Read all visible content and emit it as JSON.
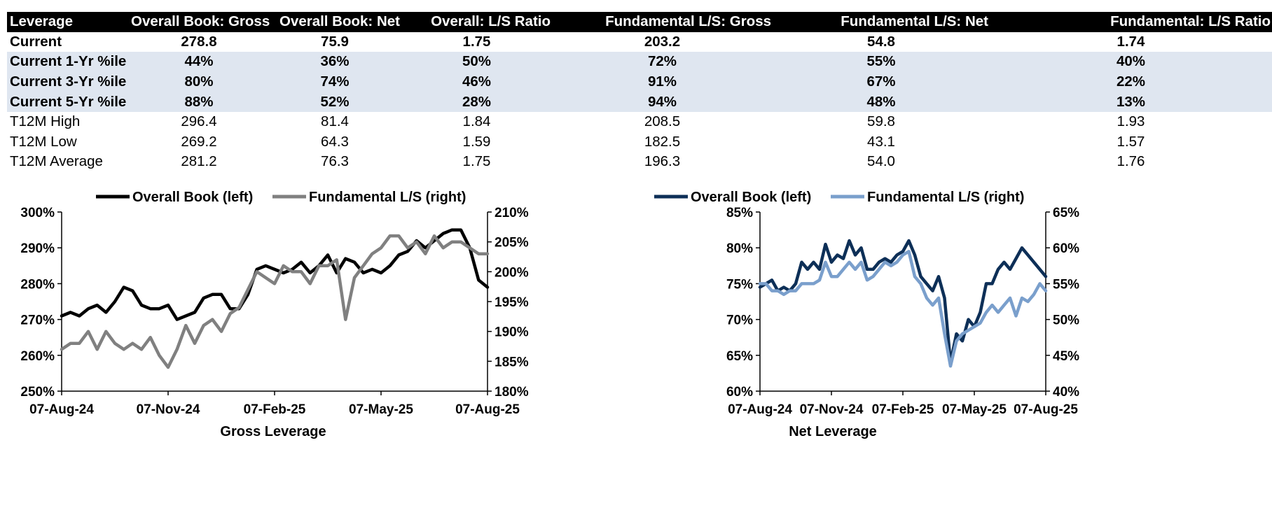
{
  "table": {
    "headers": [
      "Leverage",
      "Overall Book: Gross",
      "Overall Book: Net",
      "Overall: L/S Ratio",
      "Fundamental L/S: Gross",
      "Fundamental L/S: Net",
      "Fundamental: L/S Ratio"
    ],
    "rows": [
      {
        "label": "Current",
        "values": [
          "278.8",
          "75.9",
          "1.75",
          "203.2",
          "54.8",
          "1.74"
        ]
      },
      {
        "label": "Current 1-Yr %ile",
        "values": [
          "44%",
          "36%",
          "50%",
          "72%",
          "55%",
          "40%"
        ]
      },
      {
        "label": "Current 3-Yr %ile",
        "values": [
          "80%",
          "74%",
          "46%",
          "91%",
          "67%",
          "22%"
        ]
      },
      {
        "label": "Current 5-Yr %ile",
        "values": [
          "88%",
          "52%",
          "28%",
          "94%",
          "48%",
          "13%"
        ]
      },
      {
        "label": "T12M High",
        "values": [
          "296.4",
          "81.4",
          "1.84",
          "208.5",
          "59.8",
          "1.93"
        ]
      },
      {
        "label": "T12M Low",
        "values": [
          "269.2",
          "64.3",
          "1.59",
          "182.5",
          "43.1",
          "1.57"
        ]
      },
      {
        "label": "T12M Average",
        "values": [
          "281.2",
          "76.3",
          "1.75",
          "196.3",
          "54.0",
          "1.76"
        ]
      }
    ]
  },
  "chart_data": [
    {
      "type": "line",
      "title": "",
      "xlabel": "Gross Leverage",
      "x_tick_labels": [
        "07-Aug-24",
        "07-Nov-24",
        "07-Feb-25",
        "07-May-25",
        "07-Aug-25"
      ],
      "x_range": [
        0,
        12
      ],
      "ylim_left": [
        250,
        300
      ],
      "ylim_right": [
        180,
        210
      ],
      "y_left_ticks": [
        "250%",
        "260%",
        "270%",
        "280%",
        "290%",
        "300%"
      ],
      "y_right_ticks": [
        "180%",
        "185%",
        "190%",
        "195%",
        "200%",
        "205%",
        "210%"
      ],
      "legend_position": "top",
      "series": [
        {
          "name": "Overall Book (left)",
          "axis": "left",
          "color": "#000000",
          "x": [
            0,
            0.25,
            0.5,
            0.75,
            1,
            1.25,
            1.5,
            1.75,
            2,
            2.25,
            2.5,
            2.75,
            3,
            3.25,
            3.5,
            3.75,
            4,
            4.25,
            4.5,
            4.75,
            5,
            5.25,
            5.5,
            5.75,
            6,
            6.25,
            6.5,
            6.75,
            7,
            7.25,
            7.5,
            7.75,
            8,
            8.25,
            8.5,
            8.75,
            9,
            9.25,
            9.5,
            9.75,
            10,
            10.25,
            10.5,
            10.75,
            11,
            11.25,
            11.5,
            11.75,
            12
          ],
          "values": [
            271,
            272,
            271,
            273,
            274,
            272,
            275,
            279,
            278,
            274,
            273,
            273,
            274,
            270,
            271,
            272,
            276,
            277,
            277,
            273,
            273,
            277,
            284,
            285,
            284,
            283,
            284,
            286,
            283,
            285,
            288,
            283,
            287,
            286,
            283,
            284,
            283,
            285,
            288,
            289,
            292,
            290,
            292,
            294,
            295,
            295,
            290,
            281,
            279
          ]
        },
        {
          "name": "Fundamental L/S (right)",
          "axis": "right",
          "color": "#808080",
          "x": [
            0,
            0.25,
            0.5,
            0.75,
            1,
            1.25,
            1.5,
            1.75,
            2,
            2.25,
            2.5,
            2.75,
            3,
            3.25,
            3.5,
            3.75,
            4,
            4.25,
            4.5,
            4.75,
            5,
            5.25,
            5.5,
            5.75,
            6,
            6.25,
            6.5,
            6.75,
            7,
            7.25,
            7.5,
            7.75,
            8,
            8.25,
            8.5,
            8.75,
            9,
            9.25,
            9.5,
            9.75,
            10,
            10.25,
            10.5,
            10.75,
            11,
            11.25,
            11.5,
            11.75,
            12
          ],
          "values": [
            187,
            188,
            188,
            190,
            187,
            190,
            188,
            187,
            188,
            187,
            189,
            186,
            184,
            187,
            191,
            188,
            191,
            192,
            190,
            193,
            194,
            197,
            200,
            199,
            198,
            201,
            200,
            200,
            198,
            201,
            201,
            202,
            192,
            199,
            201,
            203,
            204,
            206,
            206,
            204,
            205,
            203,
            206,
            204,
            205,
            205,
            204,
            203,
            203
          ]
        }
      ]
    },
    {
      "type": "line",
      "title": "",
      "xlabel": "Net Leverage",
      "x_tick_labels": [
        "07-Aug-24",
        "07-Nov-24",
        "07-Feb-25",
        "07-May-25",
        "07-Aug-25"
      ],
      "x_range": [
        0,
        12
      ],
      "ylim_left": [
        60,
        85
      ],
      "ylim_right": [
        40,
        65
      ],
      "y_left_ticks": [
        "60%",
        "65%",
        "70%",
        "75%",
        "80%",
        "85%"
      ],
      "y_right_ticks": [
        "40%",
        "45%",
        "50%",
        "55%",
        "60%",
        "65%"
      ],
      "legend_position": "top",
      "series": [
        {
          "name": "Overall Book (left)",
          "axis": "left",
          "color": "#0d2f57",
          "x": [
            0,
            0.25,
            0.5,
            0.75,
            1,
            1.25,
            1.5,
            1.75,
            2,
            2.25,
            2.5,
            2.75,
            3,
            3.25,
            3.5,
            3.75,
            4,
            4.25,
            4.5,
            4.75,
            5,
            5.25,
            5.5,
            5.75,
            6,
            6.25,
            6.5,
            6.75,
            7,
            7.25,
            7.5,
            7.75,
            8,
            8.25,
            8.5,
            8.75,
            9,
            9.25,
            9.5,
            9.75,
            10,
            10.25,
            10.5,
            10.75,
            11,
            11.25,
            11.5,
            11.75,
            12
          ],
          "values": [
            74.5,
            75,
            75.5,
            74,
            74.5,
            74,
            75,
            78,
            77,
            78,
            77,
            80.5,
            78,
            79,
            78.5,
            81,
            79,
            80,
            77,
            77,
            78,
            78.5,
            78,
            79,
            79.5,
            81,
            79,
            76,
            75,
            74,
            76,
            73,
            64,
            68,
            67,
            70,
            69,
            71,
            75,
            75,
            77,
            78,
            77,
            78.5,
            80,
            79,
            78,
            77,
            76
          ]
        },
        {
          "name": "Fundamental L/S (right)",
          "axis": "right",
          "color": "#7a9fcc",
          "x": [
            0,
            0.25,
            0.5,
            0.75,
            1,
            1.25,
            1.5,
            1.75,
            2,
            2.25,
            2.5,
            2.75,
            3,
            3.25,
            3.5,
            3.75,
            4,
            4.25,
            4.5,
            4.75,
            5,
            5.25,
            5.5,
            5.75,
            6,
            6.25,
            6.5,
            6.75,
            7,
            7.25,
            7.5,
            7.75,
            8,
            8.25,
            8.5,
            8.75,
            9,
            9.25,
            9.5,
            9.75,
            10,
            10.25,
            10.5,
            10.75,
            11,
            11.25,
            11.5,
            11.75,
            12
          ],
          "values": [
            55,
            55,
            54,
            54,
            53.5,
            54,
            54,
            55,
            55,
            55,
            55.5,
            58,
            56,
            56,
            57,
            58,
            57,
            58,
            55.5,
            56,
            57,
            58,
            57.5,
            58,
            59,
            59.5,
            56,
            55,
            53,
            52,
            53,
            48,
            43.5,
            47,
            48,
            48.5,
            49,
            49.5,
            51,
            52,
            51,
            52,
            53,
            50.5,
            53,
            52.5,
            53.5,
            55,
            54
          ]
        }
      ]
    }
  ]
}
